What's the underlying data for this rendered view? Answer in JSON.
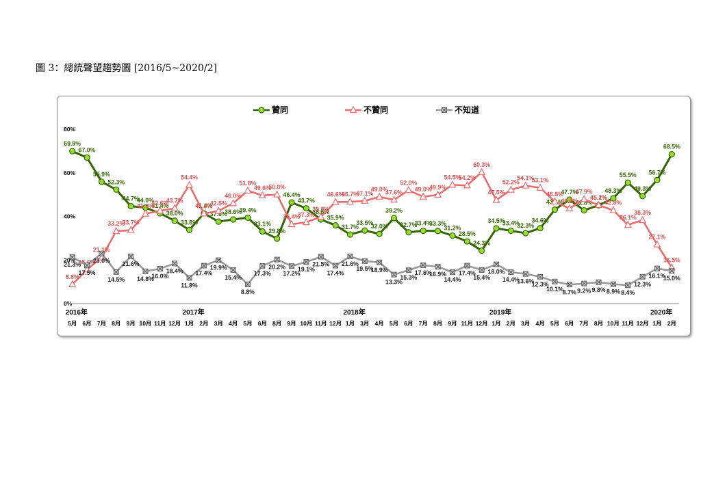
{
  "page": {
    "title": "圖 3：總統聲望趨勢圖  [2016/5~2020/2]"
  },
  "chart_data": {
    "type": "line",
    "title": "",
    "ylim": [
      0,
      80
    ],
    "yticks": [
      "0%",
      "20%",
      "40%",
      "60%",
      "80%"
    ],
    "x": [
      "5月",
      "6月",
      "7月",
      "8月",
      "9月",
      "10月",
      "11月",
      "12月",
      "1月",
      "2月",
      "3月",
      "4月",
      "5月",
      "6月",
      "8月",
      "9月",
      "10月",
      "11月",
      "12月",
      "1月",
      "3月",
      "4月",
      "5月",
      "6月",
      "7月",
      "8月",
      "9月",
      "11月",
      "12月",
      "1月",
      "2月",
      "3月",
      "4月",
      "5月",
      "6月",
      "7月",
      "8月",
      "10月",
      "11月",
      "12月",
      "1月",
      "2月"
    ],
    "years": [
      {
        "label": "2016年",
        "index": 0
      },
      {
        "label": "2017年",
        "index": 8
      },
      {
        "label": "2018年",
        "index": 19
      },
      {
        "label": "2019年",
        "index": 29
      },
      {
        "label": "2020年",
        "index": 40
      }
    ],
    "legend_position": "top",
    "series": [
      {
        "name": "贊同",
        "color": "#336600",
        "marker": "circle",
        "marker_fill": "#99dd33",
        "values": [
          69.9,
          67.0,
          55.9,
          52.3,
          44.7,
          44.0,
          41.4,
          38.0,
          33.8,
          41.4,
          37.6,
          38.6,
          39.4,
          33.1,
          29.8,
          46.4,
          43.7,
          38.6,
          35.9,
          31.7,
          33.5,
          32.0,
          39.2,
          32.7,
          33.4,
          33.3,
          31.2,
          28.5,
          24.3,
          34.5,
          33.4,
          32.3,
          34.6,
          43.1,
          47.7,
          42.8,
          45.1,
          48.3,
          55.5,
          49.3,
          56.7,
          68.5
        ],
        "labels": [
          "69.9%",
          "67.0%",
          "55.9%",
          "52.3%",
          "44.7%",
          "44.0%",
          "41.4%",
          "38.0%",
          "33.8%",
          "41.4%",
          "37.6%",
          "38.6%",
          "39.4%",
          "33.1%",
          "29.8%",
          "46.4%",
          "43.7%",
          "38.6%",
          "35.9%",
          "31.7%",
          "33.5%",
          "32.0%",
          "39.2%",
          "32.7%",
          "33.4%",
          "33.3%",
          "31.2%",
          "28.5%",
          "24.3%",
          "34.5%",
          "33.4%",
          "32.3%",
          "34.6%",
          "43.1%",
          "47.7%",
          "42.8%",
          "45.1%",
          "48.3%",
          "55.5%",
          "49.3%",
          "56.7%",
          "68.5%"
        ]
      },
      {
        "name": "不贊同",
        "color": "#e86e6e",
        "marker": "triangle",
        "marker_fill": "#ffffff",
        "values": [
          8.8,
          15.6,
          21.1,
          33.2,
          33.7,
          41.2,
          42.6,
          43.7,
          54.4,
          41.3,
          42.5,
          46.0,
          51.8,
          49.6,
          50.0,
          36.4,
          37.3,
          39.8,
          46.6,
          46.7,
          47.1,
          49.0,
          47.6,
          52.0,
          49.0,
          49.9,
          54.5,
          54.2,
          60.3,
          47.5,
          52.2,
          54.1,
          53.1,
          46.8,
          43.6,
          47.9,
          45.2,
          42.8,
          36.1,
          38.3,
          27.1,
          16.5
        ],
        "labels": [
          "8.8%",
          "15.6%",
          "21.1%",
          "33.2%",
          "33.7%",
          "41.2%",
          "42.6%",
          "43.7%",
          "54.4%",
          "41.3%",
          "42.5%",
          "46.0%",
          "51.8%",
          "49.6%",
          "50.0%",
          "36.4%",
          "37.3%",
          "39.8%",
          "46.6%",
          "46.7%",
          "47.1%",
          "49.0%",
          "47.6%",
          "52.0%",
          "49.0%",
          "49.9%",
          "54.5%",
          "54.2%",
          "60.3%",
          "47.5%",
          "52.2%",
          "54.1%",
          "53.1%",
          "46.8%",
          "43.6%",
          "47.9%",
          "45.2%",
          "42.8%",
          "36.1%",
          "38.3%",
          "27.1%",
          "16.5%"
        ]
      },
      {
        "name": "不知道",
        "color": "#999999",
        "marker": "x-square",
        "marker_fill": "#cccccc",
        "values": [
          21.3,
          17.5,
          23.0,
          14.5,
          21.6,
          14.8,
          16.0,
          18.4,
          11.8,
          17.4,
          19.9,
          15.4,
          8.8,
          17.3,
          20.2,
          17.2,
          19.1,
          21.5,
          17.4,
          21.6,
          19.5,
          18.9,
          13.3,
          15.3,
          17.6,
          16.9,
          14.4,
          17.4,
          15.4,
          18.0,
          14.4,
          13.6,
          12.3,
          10.1,
          8.7,
          9.2,
          9.8,
          8.9,
          8.4,
          12.3,
          16.1,
          15.0
        ],
        "labels": [
          "21.3%",
          "17.5%",
          "23.0%",
          "14.5%",
          "21.6%",
          "14.8%",
          "16.0%",
          "18.4%",
          "11.8%",
          "17.4%",
          "19.9%",
          "15.4%",
          "8.8%",
          "17.3%",
          "20.2%",
          "17.2%",
          "19.1%",
          "21.5%",
          "17.4%",
          "21.6%",
          "19.5%",
          "18.9%",
          "13.3%",
          "15.3%",
          "17.6%",
          "16.9%",
          "14.4%",
          "17.4%",
          "15.4%",
          "18.0%",
          "14.4%",
          "13.6%",
          "12.3%",
          "10.1%",
          "8.7%",
          "9.2%",
          "9.8%",
          "8.9%",
          "8.4%",
          "12.3%",
          "16.1%",
          "15.0%"
        ]
      }
    ]
  }
}
